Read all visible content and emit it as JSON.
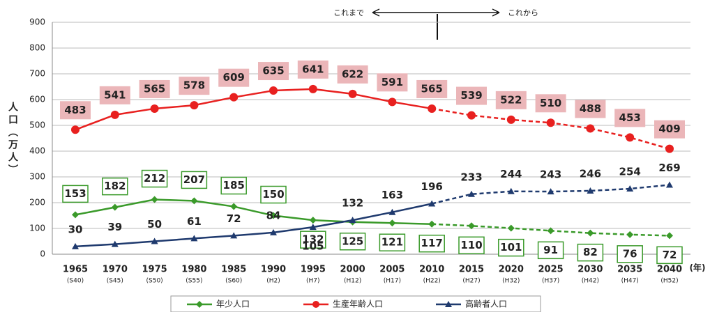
{
  "chart_data": {
    "type": "line",
    "y_label": "人口（万人）",
    "x_unit": "(年)",
    "annotations": [
      "これまで",
      "これから"
    ],
    "categories": [
      "1965",
      "1970",
      "1975",
      "1980",
      "1985",
      "1990",
      "1995",
      "2000",
      "2005",
      "2010",
      "2015",
      "2020",
      "2025",
      "2030",
      "2035",
      "2040"
    ],
    "era_labels": [
      "(S40)",
      "(S45)",
      "(S50)",
      "(S55)",
      "(S60)",
      "(H2)",
      "(H7)",
      "(H12)",
      "(H17)",
      "(H22)",
      "(H27)",
      "(H32)",
      "(H37)",
      "(H42)",
      "(H47)",
      "(H52)"
    ],
    "dashed_from": "2010",
    "series": [
      {
        "name": "年少人口",
        "color": "#3a9a2a",
        "marker": "diamond",
        "values": [
          153,
          182,
          212,
          207,
          185,
          150,
          132,
          125,
          121,
          117,
          110,
          101,
          91,
          82,
          76,
          72
        ]
      },
      {
        "name": "生産年齢人口",
        "color": "#e8201f",
        "marker": "circle",
        "values": [
          483,
          541,
          565,
          578,
          609,
          635,
          641,
          622,
          591,
          565,
          539,
          522,
          510,
          488,
          453,
          409
        ]
      },
      {
        "name": "高齢者人口",
        "color": "#1f3a6e",
        "marker": "triangle",
        "values": [
          30,
          39,
          50,
          61,
          72,
          84,
          105,
          132,
          163,
          196,
          233,
          244,
          243,
          246,
          254,
          269
        ]
      }
    ],
    "ylim": [
      0,
      900
    ],
    "yticks": [
      0,
      100,
      200,
      300,
      400,
      500,
      600,
      700,
      800,
      900
    ],
    "grid": true
  }
}
